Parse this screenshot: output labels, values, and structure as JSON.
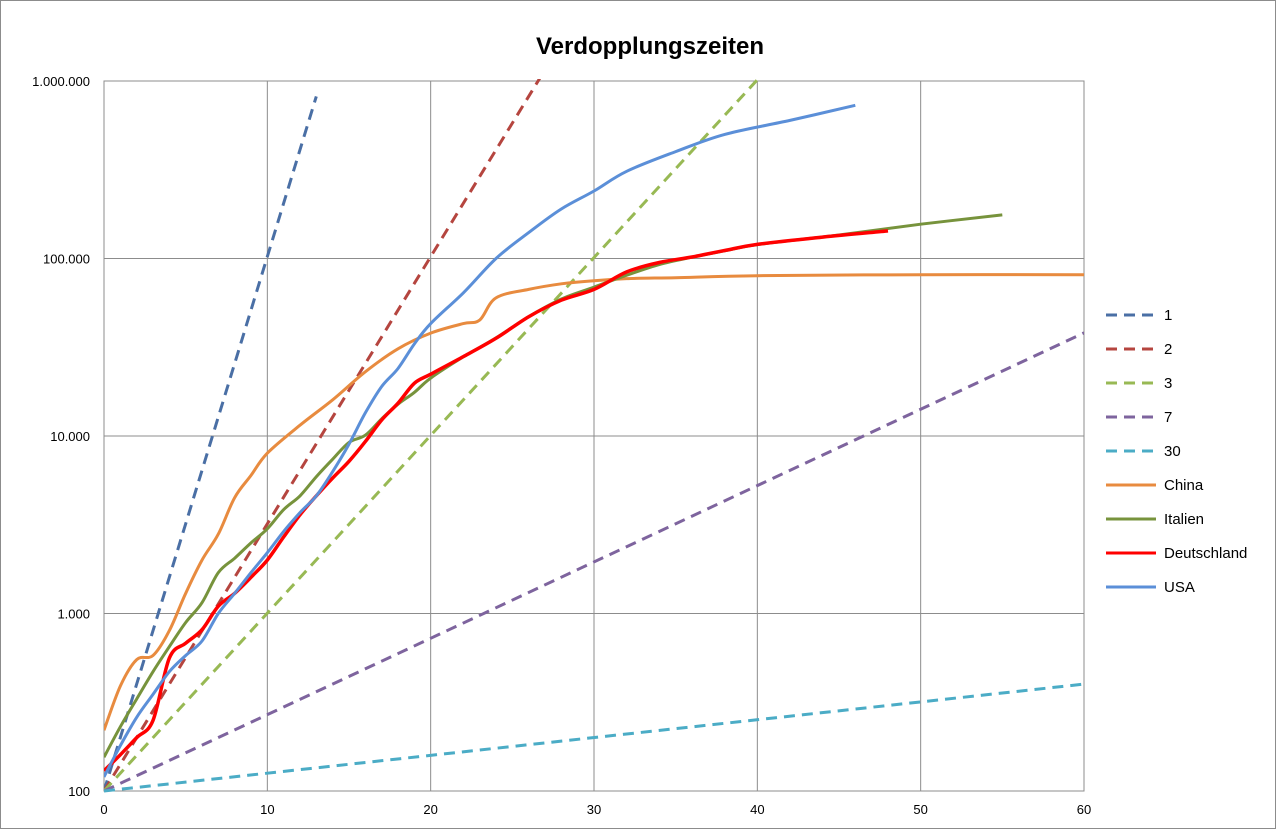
{
  "chart_data": {
    "type": "line",
    "title": "Verdopplungszeiten",
    "xlabel": "",
    "ylabel": "",
    "xlim": [
      0,
      60
    ],
    "ylim": [
      100,
      1000000
    ],
    "yscale": "log",
    "grid": true,
    "legend_position": "right",
    "x_ticks": [
      0,
      10,
      20,
      30,
      40,
      50,
      60
    ],
    "x_tick_labels": [
      "0",
      "10",
      "20",
      "30",
      "40",
      "50",
      "60"
    ],
    "y_ticks": [
      100,
      1000,
      10000,
      100000,
      1000000
    ],
    "y_tick_labels": [
      "100",
      "1.000",
      "10.000",
      "100.000",
      "1.000.000"
    ],
    "series": [
      {
        "name": "1",
        "style": "dashed",
        "color": "#4A6FA5",
        "points": [
          [
            0,
            100
          ],
          [
            13,
            819200
          ]
        ]
      },
      {
        "name": "2",
        "style": "dashed",
        "color": "#B5453F",
        "points": [
          [
            0,
            100
          ],
          [
            27,
            1158000
          ]
        ]
      },
      {
        "name": "3",
        "style": "dashed",
        "color": "#98B954",
        "points": [
          [
            0,
            100
          ],
          [
            40,
            1016000
          ]
        ]
      },
      {
        "name": "7",
        "style": "dashed",
        "color": "#7E649E",
        "points": [
          [
            0,
            100
          ],
          [
            60,
            38100
          ]
        ]
      },
      {
        "name": "30",
        "style": "dashed",
        "color": "#4BACC6",
        "points": [
          [
            0,
            100
          ],
          [
            60,
            400
          ]
        ]
      },
      {
        "name": "China",
        "style": "solid",
        "color": "#E88B3F",
        "points": [
          [
            0,
            220
          ],
          [
            1,
            390
          ],
          [
            2,
            550
          ],
          [
            3,
            580
          ],
          [
            4,
            800
          ],
          [
            5,
            1300
          ],
          [
            6,
            2000
          ],
          [
            7,
            2800
          ],
          [
            8,
            4500
          ],
          [
            9,
            6000
          ],
          [
            10,
            8000
          ],
          [
            12,
            11500
          ],
          [
            14,
            16000
          ],
          [
            16,
            23000
          ],
          [
            18,
            31000
          ],
          [
            20,
            38000
          ],
          [
            22,
            43000
          ],
          [
            23,
            45000
          ],
          [
            24,
            60000
          ],
          [
            26,
            67000
          ],
          [
            28,
            72000
          ],
          [
            30,
            75000
          ],
          [
            32,
            77000
          ],
          [
            35,
            78000
          ],
          [
            40,
            80000
          ],
          [
            50,
            81000
          ],
          [
            60,
            81000
          ]
        ]
      },
      {
        "name": "Italien",
        "style": "solid",
        "color": "#77933C",
        "points": [
          [
            0,
            155
          ],
          [
            1,
            230
          ],
          [
            2,
            330
          ],
          [
            3,
            470
          ],
          [
            4,
            650
          ],
          [
            5,
            890
          ],
          [
            6,
            1150
          ],
          [
            7,
            1700
          ],
          [
            8,
            2050
          ],
          [
            9,
            2500
          ],
          [
            10,
            3000
          ],
          [
            11,
            3850
          ],
          [
            12,
            4600
          ],
          [
            13,
            5900
          ],
          [
            14,
            7400
          ],
          [
            15,
            9200
          ],
          [
            16,
            10100
          ],
          [
            17,
            12500
          ],
          [
            18,
            15100
          ],
          [
            19,
            17600
          ],
          [
            20,
            21200
          ],
          [
            22,
            27900
          ],
          [
            24,
            35700
          ],
          [
            26,
            47000
          ],
          [
            28,
            59100
          ],
          [
            30,
            69000
          ],
          [
            32,
            80500
          ],
          [
            34,
            92500
          ],
          [
            36,
            101700
          ],
          [
            38,
            110500
          ],
          [
            40,
            119800
          ],
          [
            45,
            135600
          ],
          [
            50,
            156000
          ],
          [
            55,
            176000
          ]
        ]
      },
      {
        "name": "Deutschland",
        "style": "solid",
        "color": "#FF0000",
        "points": [
          [
            0,
            130
          ],
          [
            1,
            160
          ],
          [
            2,
            200
          ],
          [
            3,
            250
          ],
          [
            4,
            560
          ],
          [
            5,
            680
          ],
          [
            6,
            810
          ],
          [
            7,
            1100
          ],
          [
            8,
            1300
          ],
          [
            9,
            1600
          ],
          [
            10,
            2000
          ],
          [
            11,
            2700
          ],
          [
            12,
            3600
          ],
          [
            13,
            4600
          ],
          [
            14,
            5800
          ],
          [
            15,
            7200
          ],
          [
            16,
            9300
          ],
          [
            17,
            12300
          ],
          [
            18,
            15300
          ],
          [
            19,
            19800
          ],
          [
            20,
            22300
          ],
          [
            22,
            28000
          ],
          [
            24,
            35500
          ],
          [
            26,
            47000
          ],
          [
            28,
            58200
          ],
          [
            30,
            67000
          ],
          [
            32,
            84000
          ],
          [
            34,
            95000
          ],
          [
            36,
            102000
          ],
          [
            38,
            111000
          ],
          [
            40,
            120000
          ],
          [
            44,
            132000
          ],
          [
            48,
            143000
          ]
        ]
      },
      {
        "name": "USA",
        "style": "solid",
        "color": "#5B8FD8",
        "points": [
          [
            0,
            120
          ],
          [
            1,
            180
          ],
          [
            2,
            260
          ],
          [
            3,
            350
          ],
          [
            4,
            470
          ],
          [
            5,
            580
          ],
          [
            6,
            700
          ],
          [
            7,
            1000
          ],
          [
            8,
            1300
          ],
          [
            9,
            1700
          ],
          [
            10,
            2200
          ],
          [
            11,
            2900
          ],
          [
            12,
            3700
          ],
          [
            13,
            4600
          ],
          [
            14,
            6300
          ],
          [
            15,
            9000
          ],
          [
            16,
            13500
          ],
          [
            17,
            19000
          ],
          [
            18,
            24000
          ],
          [
            19,
            33000
          ],
          [
            20,
            43000
          ],
          [
            22,
            64000
          ],
          [
            24,
            100000
          ],
          [
            26,
            140000
          ],
          [
            28,
            190000
          ],
          [
            30,
            240000
          ],
          [
            32,
            310000
          ],
          [
            35,
            400000
          ],
          [
            38,
            500000
          ],
          [
            42,
            600000
          ],
          [
            46,
            730000
          ]
        ]
      }
    ]
  }
}
